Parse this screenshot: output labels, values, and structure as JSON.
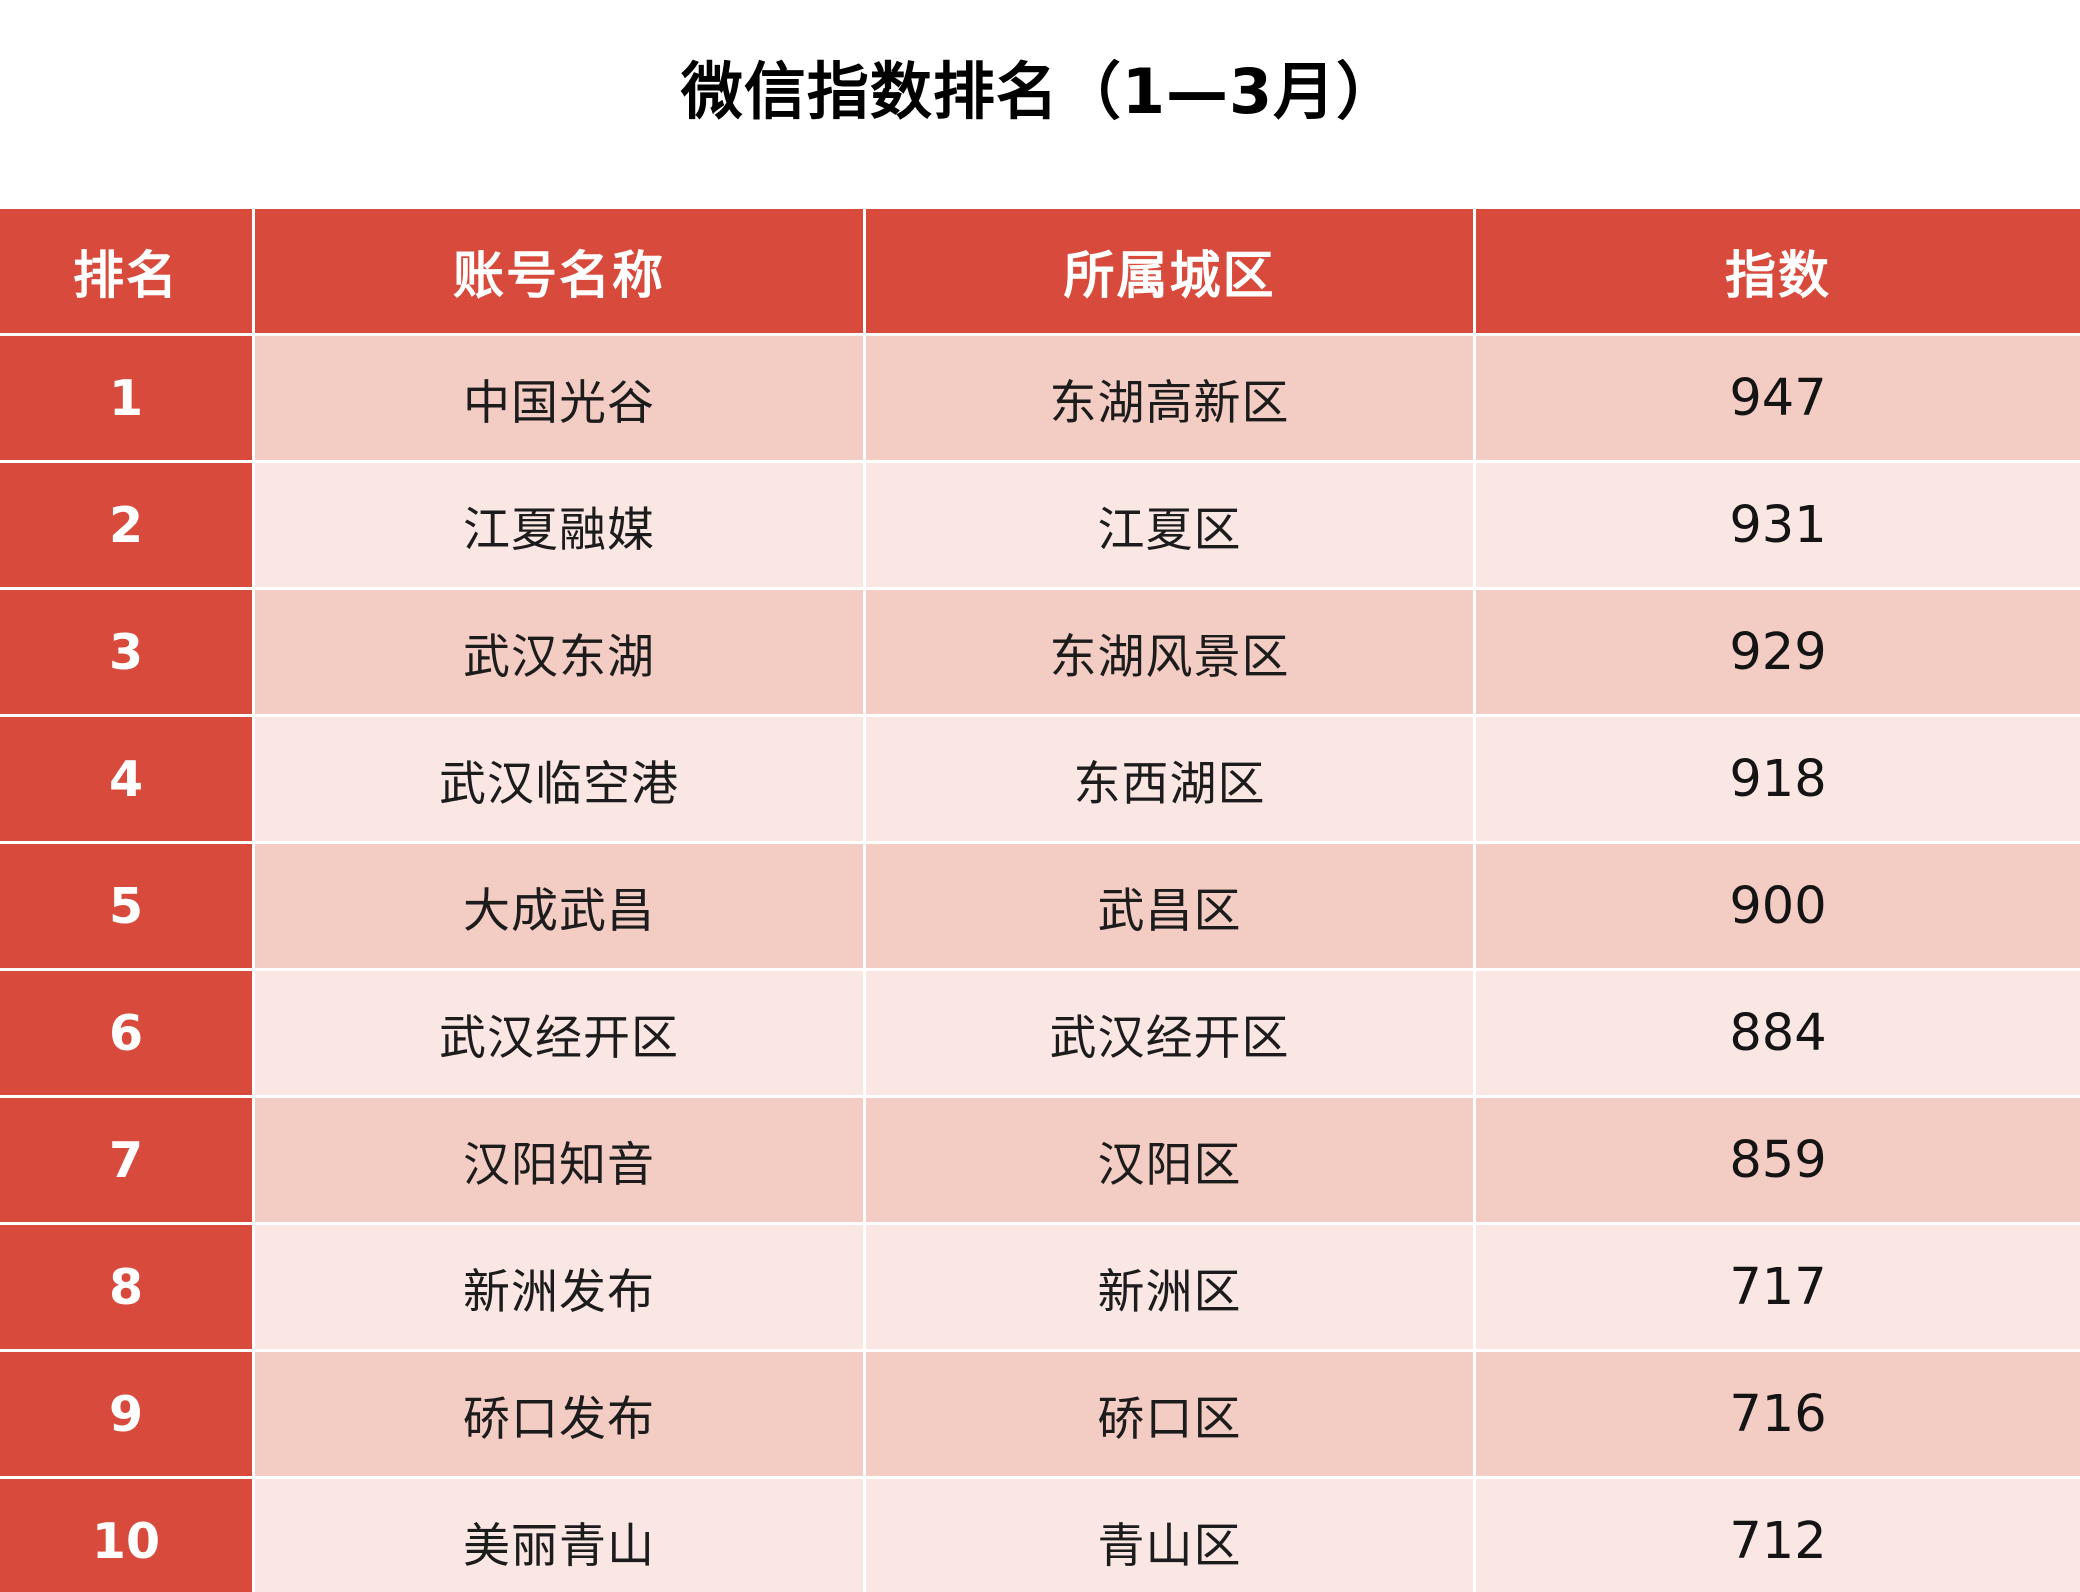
{
  "title": "微信指数排名（1—3月）",
  "colors": {
    "header_red": "#d84b3c",
    "row_odd_pink": "#f3ccc3",
    "row_even_pink": "#fae7e3",
    "header_text": "#ffffff",
    "cell_text": "#1c1c1c"
  },
  "table": {
    "headers": [
      "排名",
      "账号名称",
      "所属城区",
      "指数"
    ],
    "rows": [
      {
        "rank": "1",
        "account": "中国光谷",
        "district": "东湖高新区",
        "index": "947"
      },
      {
        "rank": "2",
        "account": "江夏融媒",
        "district": "江夏区",
        "index": "931"
      },
      {
        "rank": "3",
        "account": "武汉东湖",
        "district": "东湖风景区",
        "index": "929"
      },
      {
        "rank": "4",
        "account": "武汉临空港",
        "district": "东西湖区",
        "index": "918"
      },
      {
        "rank": "5",
        "account": "大成武昌",
        "district": "武昌区",
        "index": "900"
      },
      {
        "rank": "6",
        "account": "武汉经开区",
        "district": "武汉经开区",
        "index": "884"
      },
      {
        "rank": "7",
        "account": "汉阳知音",
        "district": "汉阳区",
        "index": "859"
      },
      {
        "rank": "8",
        "account": "新洲发布",
        "district": "新洲区",
        "index": "717"
      },
      {
        "rank": "9",
        "account": "硚口发布",
        "district": "硚口区",
        "index": "716"
      },
      {
        "rank": "10",
        "account": "美丽青山",
        "district": "青山区",
        "index": "712"
      }
    ]
  }
}
